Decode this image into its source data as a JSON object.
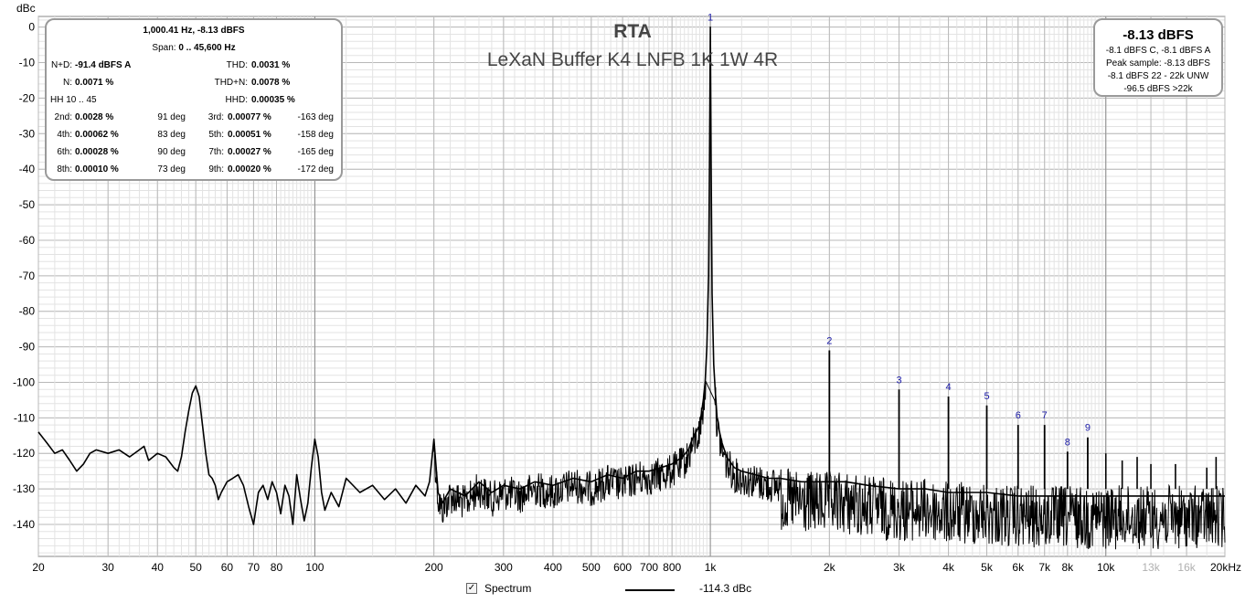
{
  "chart_data": {
    "type": "line",
    "title": "RTA",
    "subtitle": "LeXaN Buffer K4 LNFB 1K 1W 4R",
    "ylabel": "dBc",
    "xlabel": "",
    "x_scale": "log",
    "xlim": [
      20,
      20000
    ],
    "ylim": [
      -149,
      3
    ],
    "grid": true,
    "y_ticks": [
      "0",
      "-10",
      "-20",
      "-30",
      "-40",
      "-50",
      "-60",
      "-70",
      "-80",
      "-90",
      "-100",
      "-110",
      "-120",
      "-130",
      "-140"
    ],
    "x_ticks": [
      {
        "v": 20,
        "label": "20"
      },
      {
        "v": 30,
        "label": "30"
      },
      {
        "v": 40,
        "label": "40"
      },
      {
        "v": 50,
        "label": "50"
      },
      {
        "v": 60,
        "label": "60"
      },
      {
        "v": 70,
        "label": "70"
      },
      {
        "v": 80,
        "label": "80"
      },
      {
        "v": 100,
        "label": "100"
      },
      {
        "v": 200,
        "label": "200"
      },
      {
        "v": 300,
        "label": "300"
      },
      {
        "v": 400,
        "label": "400"
      },
      {
        "v": 500,
        "label": "500"
      },
      {
        "v": 600,
        "label": "600"
      },
      {
        "v": 700,
        "label": "700"
      },
      {
        "v": 800,
        "label": "800"
      },
      {
        "v": 1000,
        "label": "1k"
      },
      {
        "v": 2000,
        "label": "2k"
      },
      {
        "v": 3000,
        "label": "3k"
      },
      {
        "v": 4000,
        "label": "4k"
      },
      {
        "v": 5000,
        "label": "5k"
      },
      {
        "v": 6000,
        "label": "6k"
      },
      {
        "v": 7000,
        "label": "7k"
      },
      {
        "v": 8000,
        "label": "8k"
      },
      {
        "v": 10000,
        "label": "10k"
      },
      {
        "v": 13000,
        "label": "13k",
        "dim": true
      },
      {
        "v": 16000,
        "label": "16k",
        "dim": true
      },
      {
        "v": 20000,
        "label": "20kHz"
      }
    ],
    "harmonic_markers": [
      {
        "label": "1",
        "x": 1000,
        "y": 0
      },
      {
        "label": "2",
        "x": 2000,
        "y": -91
      },
      {
        "label": "3",
        "x": 3000,
        "y": -102
      },
      {
        "label": "4",
        "x": 4000,
        "y": -104
      },
      {
        "label": "5",
        "x": 5000,
        "y": -106.5
      },
      {
        "label": "6",
        "x": 6000,
        "y": -112
      },
      {
        "label": "7",
        "x": 7000,
        "y": -112
      },
      {
        "label": "8",
        "x": 8000,
        "y": -119.5
      },
      {
        "label": "9",
        "x": 9000,
        "y": -115.5
      }
    ],
    "extra_spurs": [
      {
        "x": 10000,
        "y": -120
      },
      {
        "x": 11000,
        "y": -122
      },
      {
        "x": 12000,
        "y": -121
      },
      {
        "x": 13000,
        "y": -123
      },
      {
        "x": 15000,
        "y": -123
      },
      {
        "x": 18000,
        "y": -124
      },
      {
        "x": 19000,
        "y": -121
      }
    ],
    "series": [
      {
        "name": "Spectrum",
        "x": [
          20,
          21,
          22,
          23,
          24,
          25,
          26,
          27,
          28,
          30,
          32,
          34,
          36,
          37,
          38,
          40,
          42,
          44,
          45,
          46,
          47,
          48,
          49,
          50,
          51,
          52,
          53,
          54,
          55,
          56,
          57,
          58,
          60,
          62,
          64,
          66,
          68,
          70,
          72,
          74,
          76,
          78,
          80,
          82,
          84,
          86,
          88,
          90,
          92,
          94,
          96,
          98,
          100,
          102,
          104,
          106,
          110,
          115,
          120,
          130,
          140,
          150,
          160,
          170,
          180,
          190,
          195,
          200,
          205,
          210,
          220,
          240,
          260,
          280,
          300,
          330,
          360,
          400,
          450,
          500,
          550,
          600,
          650,
          700,
          750,
          800,
          850,
          880,
          900,
          920,
          940,
          960,
          970,
          980,
          990,
          995,
          1000,
          1005,
          1010,
          1020,
          1030,
          1040,
          1050,
          1070,
          1100,
          1150,
          1200,
          1300,
          1400,
          1500,
          1700,
          1900,
          2000,
          2200,
          2500,
          3000,
          3500,
          4000,
          5000,
          6000,
          7000,
          8000,
          10000,
          12000,
          14000,
          16000,
          18000,
          20000
        ],
        "y": [
          -114,
          -117,
          -120,
          -119,
          -122,
          -125,
          -123,
          -120,
          -119,
          -120,
          -119,
          -121,
          -119,
          -118,
          -122,
          -120,
          -121,
          -124,
          -125,
          -121,
          -114,
          -108,
          -103,
          -101,
          -104,
          -112,
          -120,
          -126,
          -127,
          -129,
          -133,
          -131,
          -128,
          -127,
          -126,
          -129,
          -135,
          -140,
          -131,
          -129,
          -133,
          -128,
          -131,
          -137,
          -129,
          -132,
          -140,
          -126,
          -133,
          -139,
          -134,
          -124,
          -116,
          -121,
          -131,
          -136,
          -131,
          -135,
          -127,
          -131,
          -129,
          -133,
          -130,
          -134,
          -129,
          -132,
          -128,
          -116,
          -131,
          -134,
          -130,
          -132,
          -128,
          -131,
          -129,
          -130,
          -128,
          -129,
          -127,
          -128,
          -126,
          -127,
          -125,
          -125,
          -124,
          -123,
          -121,
          -119,
          -116,
          -114,
          -112,
          -105,
          -100,
          -90,
          -70,
          -40,
          0,
          -40,
          -75,
          -95,
          -103,
          -110,
          -113,
          -117,
          -121,
          -124,
          -125,
          -126,
          -127,
          -127,
          -128,
          -128,
          -128,
          -128,
          -129,
          -130,
          -130,
          -131,
          -131,
          -132,
          -132,
          -132,
          -132,
          -132,
          -132,
          -132,
          -132,
          -132
        ]
      }
    ],
    "legend": {
      "position": "bottom-center",
      "checkbox_label": "Spectrum",
      "value": "-114.3 dBc"
    }
  },
  "stats": {
    "header1": "1,000.41 Hz, -8.13 dBFS",
    "header2_prefix": "Span: ",
    "header2_value": "0 .. 45,600 Hz",
    "rows": [
      {
        "l1": "N+D:",
        "v1": "-91.4 dBFS A",
        "l2": "THD:",
        "v2": "0.0031 %"
      },
      {
        "l1": "N:",
        "v1": "0.0071 %",
        "l2": "THD+N:",
        "v2": "0.0078 %"
      },
      {
        "l1": "HH 10 .. 45",
        "v1": "",
        "l2": "HHD:",
        "v2": "0.00035 %"
      }
    ],
    "harmonics": [
      {
        "l1": "2nd:",
        "v1": "0.0028 %",
        "d1": "91 deg",
        "l2": "3rd:",
        "v2": "0.00077 %",
        "d2": "-163 deg"
      },
      {
        "l1": "4th:",
        "v1": "0.00062 %",
        "d1": "83 deg",
        "l2": "5th:",
        "v2": "0.00051 %",
        "d2": "-158 deg"
      },
      {
        "l1": "6th:",
        "v1": "0.00028 %",
        "d1": "90 deg",
        "l2": "7th:",
        "v2": "0.00027 %",
        "d2": "-165 deg"
      },
      {
        "l1": "8th:",
        "v1": "0.00010 %",
        "d1": "73 deg",
        "l2": "9th:",
        "v2": "0.00020 %",
        "d2": "-172 deg"
      }
    ]
  },
  "level": {
    "main": "-8.13 dBFS",
    "lines": [
      "-8.1 dBFS C, -8.1 dBFS A",
      "Peak sample: -8.13 dBFS",
      "-8.1 dBFS 22 - 22k UNW",
      "-96.5 dBFS >22k"
    ]
  }
}
